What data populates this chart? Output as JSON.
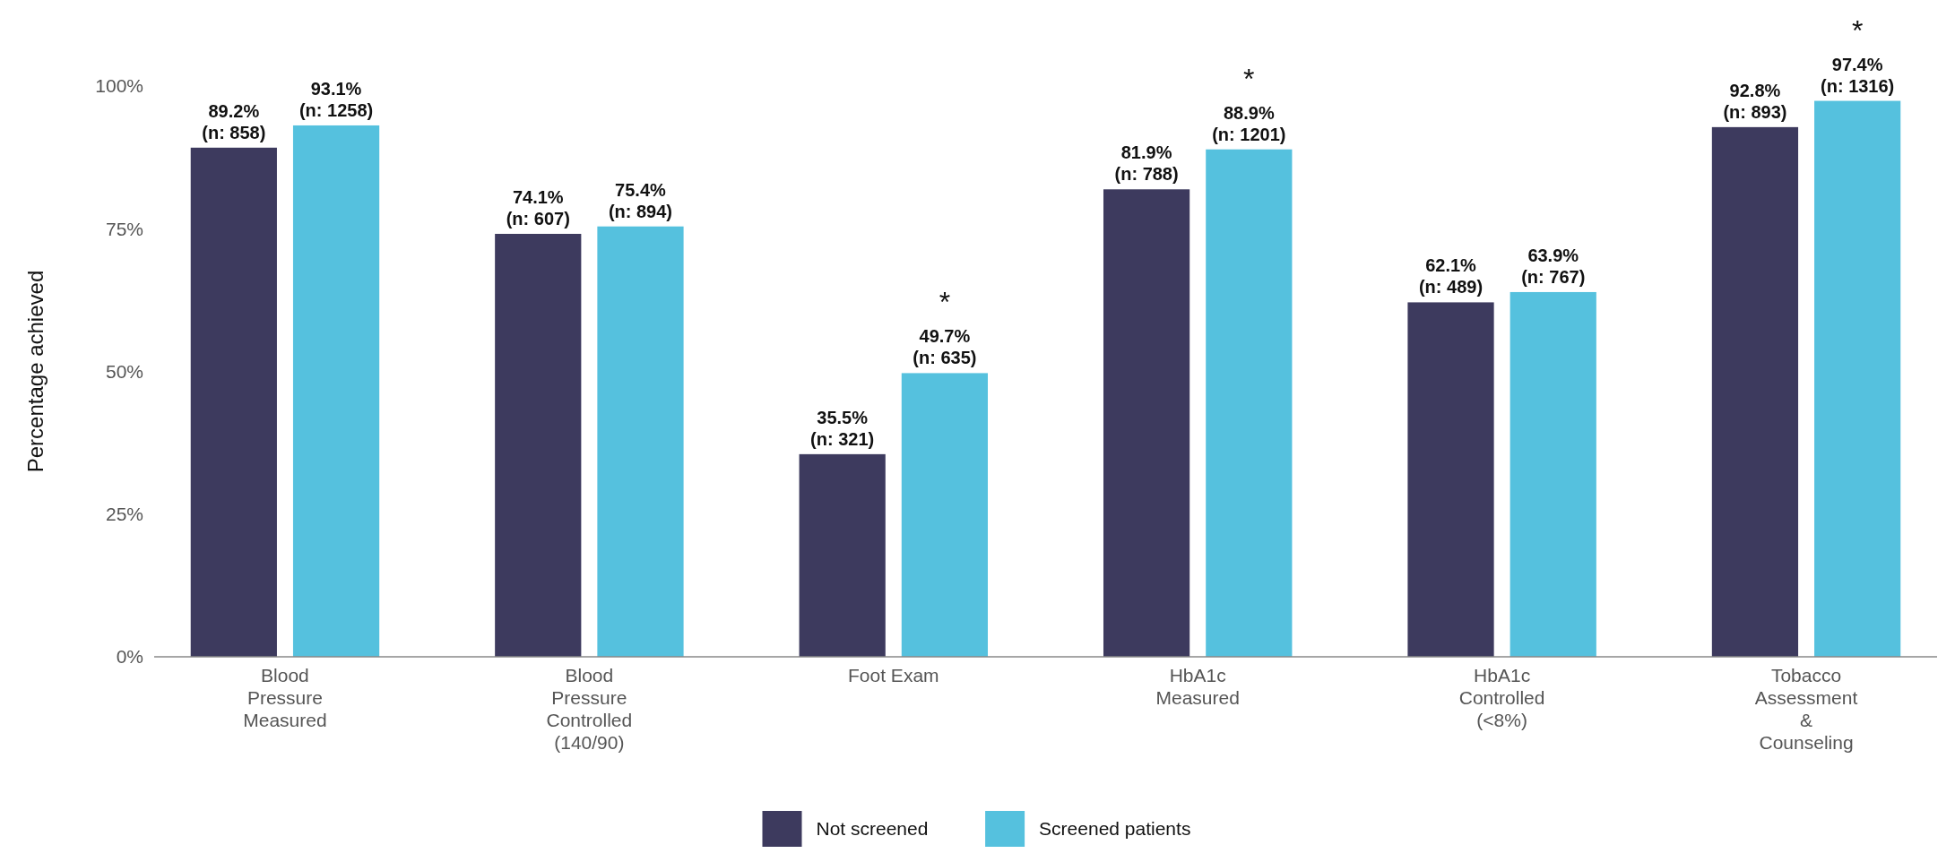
{
  "chart_data": {
    "type": "bar",
    "ylabel": "Percentage achieved",
    "categories": [
      "Blood Pressure Measured",
      "Blood Pressure Controlled (140/90)",
      "Foot Exam",
      "HbA1c Measured",
      "HbA1c Controlled (<8%)",
      "Tobacco Assessment & Counseling"
    ],
    "series": [
      {
        "name": "Not screened",
        "color": "#3d3a5e",
        "values": [
          89.2,
          74.1,
          35.5,
          81.9,
          62.1,
          92.8
        ],
        "value_labels": [
          "89.2%\n(n: 858)",
          "74.1%\n(n: 607)",
          "35.5%\n(n: 321)",
          "81.9%\n(n: 788)",
          "62.1%\n(n: 489)",
          "92.8%\n(n: 893)"
        ]
      },
      {
        "name": "Screened patients",
        "color": "#55c1de",
        "values": [
          93.1,
          75.4,
          49.7,
          88.9,
          63.9,
          97.4
        ],
        "value_labels": [
          "93.1%\n(n: 1258)",
          "75.4%\n(n: 894)",
          "*\n49.7%\n(n: 635)",
          "*\n88.9%\n(n: 1201)",
          "63.9%\n(n: 767)",
          "*\n97.4%\n(n: 1316)"
        ]
      }
    ],
    "ylim": [
      0,
      100
    ],
    "yticks": [
      {
        "value": 0,
        "label": "0%"
      },
      {
        "value": 25,
        "label": "25%"
      },
      {
        "value": 50,
        "label": "50%"
      },
      {
        "value": 75,
        "label": "75%"
      },
      {
        "value": 100,
        "label": "100%"
      }
    ],
    "grid": false,
    "legend": "bottom"
  }
}
